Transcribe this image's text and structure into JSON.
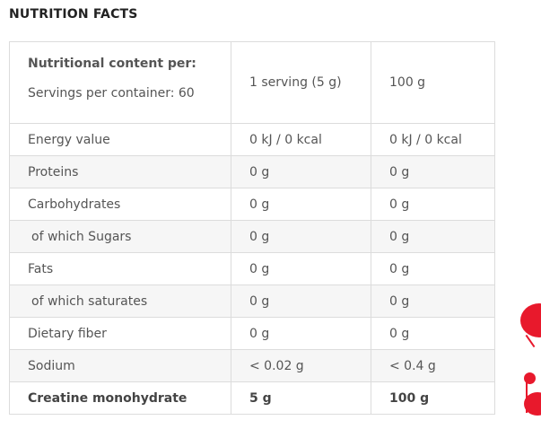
{
  "title": "NUTRITION FACTS",
  "header": {
    "label": "Nutritional content per:",
    "servings": "Servings per container: 60",
    "col1": "1 serving (5 g)",
    "col2": "100 g"
  },
  "rows": [
    {
      "name": "Energy value",
      "serving": "0 kJ / 0 kcal",
      "per100": "0 kJ / 0 kcal",
      "indent": false,
      "bold": false
    },
    {
      "name": "Proteins",
      "serving": "0 g",
      "per100": "0 g",
      "indent": false,
      "bold": false
    },
    {
      "name": "Carbohydrates",
      "serving": "0 g",
      "per100": "0 g",
      "indent": false,
      "bold": false
    },
    {
      "name": "of which Sugars",
      "serving": "0 g",
      "per100": "0 g",
      "indent": true,
      "bold": false
    },
    {
      "name": "Fats",
      "serving": "0 g",
      "per100": "0 g",
      "indent": false,
      "bold": false
    },
    {
      "name": "of which saturates",
      "serving": "0 g",
      "per100": "0 g",
      "indent": true,
      "bold": false
    },
    {
      "name": "Dietary fiber",
      "serving": "0 g",
      "per100": "0 g",
      "indent": false,
      "bold": false
    },
    {
      "name": "Sodium",
      "serving": "< 0.02 g",
      "per100": "< 0.4 g",
      "indent": false,
      "bold": false
    },
    {
      "name": "Creatine monohydrate",
      "serving": "5 g",
      "per100": "100 g",
      "indent": false,
      "bold": true
    }
  ],
  "colors": {
    "accent": "#e8192c",
    "border": "#dcdcdc",
    "stripe": "#f6f6f6"
  }
}
